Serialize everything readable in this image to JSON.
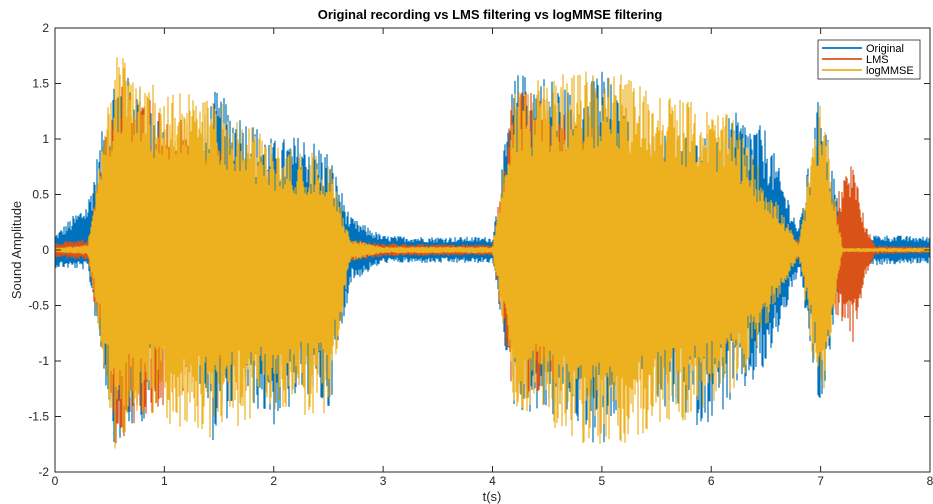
{
  "chart_data": {
    "type": "line",
    "title": "Original recording vs LMS filtering vs logMMSE filtering",
    "xlabel": "t(s)",
    "ylabel": "Sound Amplitude",
    "xlim": [
      0,
      8
    ],
    "ylim": [
      -2,
      2
    ],
    "x_ticks": [
      "0",
      "1",
      "2",
      "3",
      "4",
      "5",
      "6",
      "7",
      "8"
    ],
    "y_ticks": [
      "2",
      "1.5",
      "1",
      "0.5",
      "0",
      "-0.5",
      "-1",
      "-1.5",
      "-2"
    ],
    "grid": false,
    "legend_position": "top-right",
    "series": [
      {
        "name": "Original",
        "color": "#0072BD",
        "envelope": [
          {
            "t": 0.0,
            "max": 0.14,
            "min": -0.16
          },
          {
            "t": 0.3,
            "max": 0.45,
            "min": -0.18
          },
          {
            "t": 0.55,
            "max": 1.65,
            "min": -1.8
          },
          {
            "t": 0.85,
            "max": 1.45,
            "min": -1.5
          },
          {
            "t": 1.05,
            "max": 0.9,
            "min": -0.9
          },
          {
            "t": 1.3,
            "max": 1.05,
            "min": -1.1
          },
          {
            "t": 1.45,
            "max": 1.45,
            "min": -1.75
          },
          {
            "t": 1.7,
            "max": 1.25,
            "min": -1.3
          },
          {
            "t": 2.0,
            "max": 1.0,
            "min": -1.6
          },
          {
            "t": 2.3,
            "max": 1.05,
            "min": -1.3
          },
          {
            "t": 2.5,
            "max": 0.9,
            "min": -1.5
          },
          {
            "t": 2.7,
            "max": 0.3,
            "min": -0.3
          },
          {
            "t": 3.0,
            "max": 0.13,
            "min": -0.12
          },
          {
            "t": 3.5,
            "max": 0.12,
            "min": -0.12
          },
          {
            "t": 4.0,
            "max": 0.12,
            "min": -0.12
          },
          {
            "t": 4.2,
            "max": 1.6,
            "min": -1.45
          },
          {
            "t": 4.5,
            "max": 1.6,
            "min": -1.5
          },
          {
            "t": 4.8,
            "max": 1.4,
            "min": -1.6
          },
          {
            "t": 5.0,
            "max": 1.7,
            "min": -1.9
          },
          {
            "t": 5.3,
            "max": 1.05,
            "min": -1.0
          },
          {
            "t": 5.6,
            "max": 1.1,
            "min": -1.5
          },
          {
            "t": 5.9,
            "max": 1.0,
            "min": -1.6
          },
          {
            "t": 6.2,
            "max": 1.25,
            "min": -1.4
          },
          {
            "t": 6.5,
            "max": 1.1,
            "min": -1.1
          },
          {
            "t": 6.8,
            "max": 0.2,
            "min": -0.2
          },
          {
            "t": 7.0,
            "max": 1.5,
            "min": -1.55
          },
          {
            "t": 7.2,
            "max": 0.15,
            "min": -0.15
          },
          {
            "t": 8.0,
            "max": 0.12,
            "min": -0.12
          }
        ]
      },
      {
        "name": "LMS",
        "color": "#D95319",
        "envelope": [
          {
            "t": 0.0,
            "max": 0.07,
            "min": -0.07
          },
          {
            "t": 0.3,
            "max": 0.1,
            "min": -0.1
          },
          {
            "t": 0.55,
            "max": 1.6,
            "min": -1.75
          },
          {
            "t": 2.7,
            "max": 0.1,
            "min": -0.1
          },
          {
            "t": 3.0,
            "max": 0.06,
            "min": -0.06
          },
          {
            "t": 4.0,
            "max": 0.05,
            "min": -0.05
          },
          {
            "t": 4.2,
            "max": 1.5,
            "min": -1.4
          },
          {
            "t": 6.8,
            "max": 0.1,
            "min": -0.1
          },
          {
            "t": 7.05,
            "max": 0.35,
            "min": -0.5
          },
          {
            "t": 7.25,
            "max": 0.7,
            "min": -0.7
          },
          {
            "t": 7.3,
            "max": 0.85,
            "min": -0.85
          },
          {
            "t": 7.4,
            "max": 0.3,
            "min": -0.3
          },
          {
            "t": 7.5,
            "max": 0.04,
            "min": -0.04
          },
          {
            "t": 8.0,
            "max": 0.03,
            "min": -0.03
          }
        ]
      },
      {
        "name": "logMMSE",
        "color": "#EDB120",
        "envelope": [
          {
            "t": 0.0,
            "max": 0.02,
            "min": -0.02
          },
          {
            "t": 0.3,
            "max": 0.05,
            "min": -0.05
          },
          {
            "t": 0.55,
            "max": 1.8,
            "min": -1.8
          },
          {
            "t": 0.85,
            "max": 1.5,
            "min": -1.5
          },
          {
            "t": 1.45,
            "max": 1.4,
            "min": -1.7
          },
          {
            "t": 2.0,
            "max": 0.95,
            "min": -1.5
          },
          {
            "t": 2.5,
            "max": 0.85,
            "min": -1.5
          },
          {
            "t": 2.7,
            "max": 0.1,
            "min": -0.1
          },
          {
            "t": 3.0,
            "max": 0.03,
            "min": -0.03
          },
          {
            "t": 4.0,
            "max": 0.03,
            "min": -0.03
          },
          {
            "t": 4.2,
            "max": 1.5,
            "min": -1.4
          },
          {
            "t": 5.0,
            "max": 1.65,
            "min": -1.85
          },
          {
            "t": 6.2,
            "max": 1.2,
            "min": -1.35
          },
          {
            "t": 6.8,
            "max": 0.05,
            "min": -0.05
          },
          {
            "t": 7.0,
            "max": 1.5,
            "min": -1.5
          },
          {
            "t": 7.2,
            "max": 0.02,
            "min": -0.02
          },
          {
            "t": 8.0,
            "max": 0.02,
            "min": -0.02
          }
        ]
      }
    ]
  }
}
